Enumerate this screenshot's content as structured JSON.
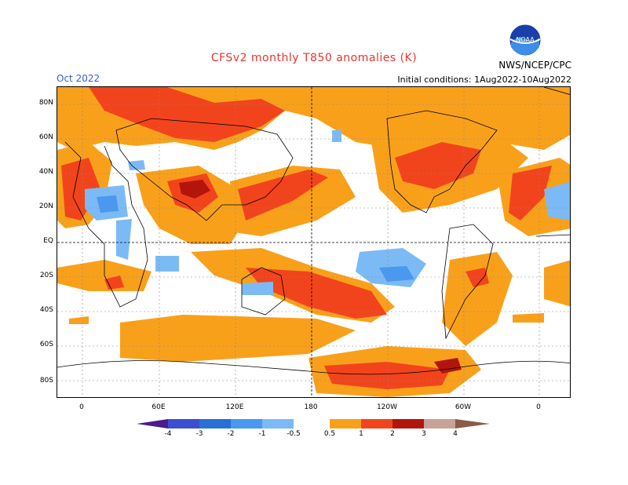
{
  "header": {
    "title": "CFSv2 monthly T850 anomalies (K)",
    "agency": "NWS/NCEP/CPC",
    "logo_text": "NOAA",
    "month": "Oct 2022",
    "initial_conditions": "Initial conditions: 1Aug2022-10Aug2022"
  },
  "axes": {
    "lat_labels": [
      "80N",
      "60N",
      "40N",
      "20N",
      "EQ",
      "20S",
      "40S",
      "60S",
      "80S"
    ],
    "lon_labels": [
      "0",
      "60E",
      "120E",
      "180",
      "120W",
      "60W",
      "0"
    ]
  },
  "colorbar": {
    "labels": [
      "-4",
      "-3",
      "-2",
      "-1",
      "-0.5",
      "0.5",
      "1",
      "2",
      "3",
      "4"
    ],
    "colors": {
      "lt_neg4": "#4b1a8c",
      "neg4_neg3": "#3b4fd0",
      "neg3_neg2": "#2a6fd8",
      "neg2_neg1": "#4a98f0",
      "neg1_neg05": "#7cbaf5",
      "neutral": "#ffffff",
      "p05_p1": "#f9a01b",
      "p1_p2": "#f2441c",
      "p2_p3": "#b3150c",
      "p3_p4": "#c9a197",
      "gt_p4": "#8a5a4a"
    }
  }
}
